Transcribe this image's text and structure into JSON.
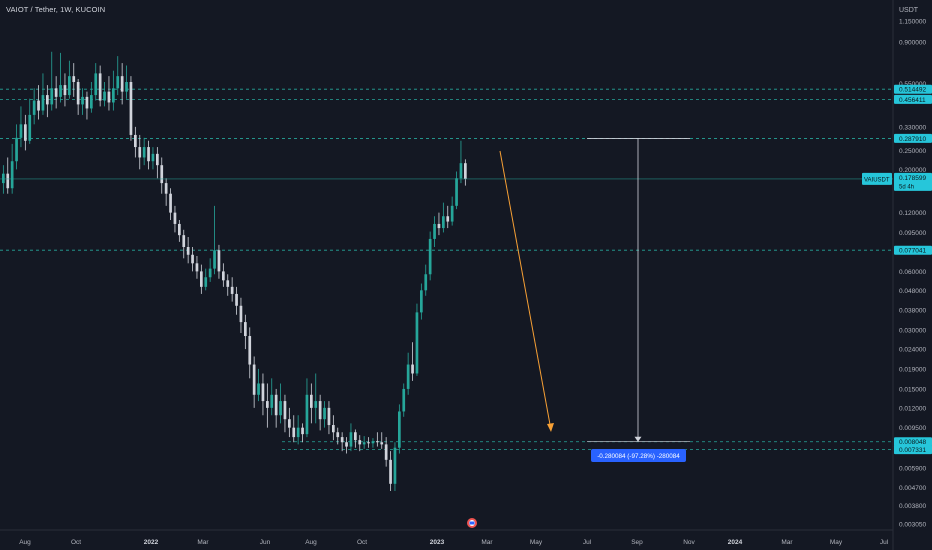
{
  "header": {
    "title": "VAIOT / Tether, 1W, KUCOIN"
  },
  "axis": {
    "currency": "USDT"
  },
  "chart_data": {
    "type": "candlestick",
    "symbol": "VAIUSDT",
    "timeframe": "1W",
    "exchange": "KUCOIN",
    "y_scale": "log",
    "y_ticks": [
      "1.150000",
      "0.900000",
      "0.550000",
      "0.330000",
      "0.250000",
      "0.200000",
      "0.120000",
      "0.095000",
      "0.060000",
      "0.048000",
      "0.038000",
      "0.030000",
      "0.024000",
      "0.019000",
      "0.015000",
      "0.012000",
      "0.009500",
      "0.005900",
      "0.004700",
      "0.003800",
      "0.003050"
    ],
    "x_ticks": [
      "Aug",
      "Oct",
      "2022",
      "Mar",
      "Jun",
      "Aug",
      "Oct",
      "2023",
      "Mar",
      "May",
      "Jul",
      "Sep",
      "Nov",
      "2024",
      "Mar",
      "May",
      "Jul"
    ],
    "horizontal_levels": [
      {
        "value": 0.514492,
        "label": "0.514492"
      },
      {
        "value": 0.456411,
        "label": "0.456411"
      },
      {
        "value": 0.28791,
        "label": "0.287910"
      },
      {
        "value": 0.077041,
        "label": "0.077041"
      },
      {
        "value": 0.008048,
        "label": "0.008048"
      },
      {
        "value": 0.007331,
        "label": "0.007331"
      }
    ],
    "last_price": {
      "label": "VAIUSDT",
      "value": "0.178599",
      "countdown": "5d 4h"
    },
    "measure": {
      "label": "-0.280084 (-97.28%) -280084"
    }
  },
  "colors": {
    "up": "#26a69a",
    "down": "#d1d4dc",
    "level": "#26a69a",
    "price_tag": "#26c6da",
    "arrow": "#f7a035",
    "measure_bg": "#2962ff"
  },
  "icons": {
    "bottom_logo": "tradingview-earnings-icon"
  }
}
